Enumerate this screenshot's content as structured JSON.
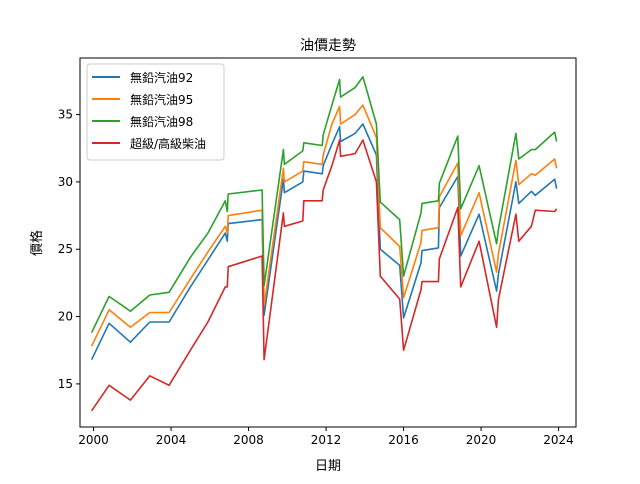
{
  "chart_data": {
    "type": "line",
    "title": "油價走勢",
    "xlabel": "日期",
    "ylabel": "價格",
    "xlim": [
      1999.3,
      2024.9
    ],
    "ylim": [
      11.8,
      39.2
    ],
    "xticks": [
      2000,
      2004,
      2008,
      2012,
      2016,
      2020,
      2024
    ],
    "yticks": [
      15,
      20,
      25,
      30,
      35
    ],
    "grid": false,
    "legend_position": "top-left",
    "series": [
      {
        "name": "無鉛汽油92",
        "color": "#1f77b4",
        "points": [
          [
            1999.9,
            16.8
          ],
          [
            2000.8,
            19.5
          ],
          [
            2001.9,
            18.1
          ],
          [
            2002.9,
            19.6
          ],
          [
            2003.9,
            19.6
          ],
          [
            2005.0,
            22.2
          ],
          [
            2005.9,
            24.2
          ],
          [
            2006.8,
            26.2
          ],
          [
            2006.9,
            25.6
          ],
          [
            2006.95,
            26.9
          ],
          [
            2008.7,
            27.2
          ],
          [
            2008.8,
            20.1
          ],
          [
            2009.8,
            30.2
          ],
          [
            2009.85,
            29.2
          ],
          [
            2010.8,
            30.0
          ],
          [
            2010.85,
            30.8
          ],
          [
            2011.8,
            30.6
          ],
          [
            2011.85,
            31.2
          ],
          [
            2012.3,
            32.8
          ],
          [
            2012.7,
            34.1
          ],
          [
            2012.75,
            33.0
          ],
          [
            2013.5,
            33.6
          ],
          [
            2013.9,
            34.3
          ],
          [
            2014.6,
            32.0
          ],
          [
            2014.8,
            25.0
          ],
          [
            2015.8,
            23.8
          ],
          [
            2016.0,
            19.9
          ],
          [
            2016.9,
            24.0
          ],
          [
            2016.95,
            24.9
          ],
          [
            2017.8,
            25.1
          ],
          [
            2017.85,
            28.1
          ],
          [
            2018.8,
            30.4
          ],
          [
            2018.95,
            24.5
          ],
          [
            2019.9,
            27.6
          ],
          [
            2020.8,
            21.9
          ],
          [
            2020.9,
            23.2
          ],
          [
            2021.8,
            30.0
          ],
          [
            2021.95,
            28.4
          ],
          [
            2022.6,
            29.3
          ],
          [
            2022.8,
            29.0
          ],
          [
            2023.8,
            30.2
          ],
          [
            2023.9,
            29.5
          ]
        ]
      },
      {
        "name": "無鉛汽油95",
        "color": "#ff7f0e",
        "points": [
          [
            1999.9,
            17.8
          ],
          [
            2000.8,
            20.5
          ],
          [
            2001.9,
            19.2
          ],
          [
            2002.9,
            20.3
          ],
          [
            2003.9,
            20.3
          ],
          [
            2005.0,
            22.8
          ],
          [
            2005.9,
            24.8
          ],
          [
            2006.8,
            26.7
          ],
          [
            2006.9,
            26.2
          ],
          [
            2006.95,
            27.5
          ],
          [
            2008.7,
            27.9
          ],
          [
            2008.8,
            20.8
          ],
          [
            2009.8,
            31.0
          ],
          [
            2009.85,
            30.0
          ],
          [
            2010.8,
            30.8
          ],
          [
            2010.85,
            31.5
          ],
          [
            2011.8,
            31.3
          ],
          [
            2011.85,
            32.0
          ],
          [
            2012.3,
            34.3
          ],
          [
            2012.7,
            35.6
          ],
          [
            2012.75,
            34.3
          ],
          [
            2013.5,
            35.0
          ],
          [
            2013.9,
            35.7
          ],
          [
            2014.6,
            33.3
          ],
          [
            2014.8,
            26.6
          ],
          [
            2015.8,
            25.2
          ],
          [
            2016.0,
            21.4
          ],
          [
            2016.9,
            25.5
          ],
          [
            2016.95,
            26.4
          ],
          [
            2017.8,
            26.6
          ],
          [
            2017.85,
            28.9
          ],
          [
            2018.8,
            31.4
          ],
          [
            2018.95,
            26.0
          ],
          [
            2019.9,
            29.2
          ],
          [
            2020.8,
            23.3
          ],
          [
            2020.9,
            24.7
          ],
          [
            2021.8,
            31.6
          ],
          [
            2021.95,
            29.8
          ],
          [
            2022.6,
            30.6
          ],
          [
            2022.8,
            30.5
          ],
          [
            2023.8,
            31.7
          ],
          [
            2023.9,
            31.0
          ]
        ]
      },
      {
        "name": "無鉛汽油98",
        "color": "#2ca02c",
        "points": [
          [
            1999.9,
            18.8
          ],
          [
            2000.8,
            21.5
          ],
          [
            2001.9,
            20.4
          ],
          [
            2002.9,
            21.6
          ],
          [
            2003.9,
            21.8
          ],
          [
            2005.0,
            24.4
          ],
          [
            2005.9,
            26.2
          ],
          [
            2006.8,
            28.6
          ],
          [
            2006.9,
            27.8
          ],
          [
            2006.95,
            29.1
          ],
          [
            2008.7,
            29.4
          ],
          [
            2008.8,
            22.3
          ],
          [
            2009.8,
            32.4
          ],
          [
            2009.85,
            31.3
          ],
          [
            2010.8,
            32.3
          ],
          [
            2010.85,
            32.9
          ],
          [
            2011.8,
            32.7
          ],
          [
            2011.85,
            33.5
          ],
          [
            2012.3,
            35.7
          ],
          [
            2012.7,
            37.6
          ],
          [
            2012.75,
            36.3
          ],
          [
            2013.5,
            37.0
          ],
          [
            2013.9,
            37.8
          ],
          [
            2014.6,
            34.3
          ],
          [
            2014.8,
            28.5
          ],
          [
            2015.8,
            27.2
          ],
          [
            2016.0,
            23.0
          ],
          [
            2016.9,
            27.7
          ],
          [
            2016.95,
            28.4
          ],
          [
            2017.8,
            28.6
          ],
          [
            2017.85,
            29.9
          ],
          [
            2018.8,
            33.4
          ],
          [
            2018.95,
            28.0
          ],
          [
            2019.9,
            31.2
          ],
          [
            2020.8,
            25.4
          ],
          [
            2020.9,
            26.5
          ],
          [
            2021.8,
            33.6
          ],
          [
            2021.95,
            31.7
          ],
          [
            2022.6,
            32.4
          ],
          [
            2022.8,
            32.4
          ],
          [
            2023.8,
            33.7
          ],
          [
            2023.9,
            33.0
          ]
        ]
      },
      {
        "name": "超級/高級柴油",
        "color": "#d62728",
        "points": [
          [
            1999.9,
            13.0
          ],
          [
            2000.8,
            14.9
          ],
          [
            2001.9,
            13.8
          ],
          [
            2002.9,
            15.6
          ],
          [
            2003.9,
            14.9
          ],
          [
            2005.0,
            17.5
          ],
          [
            2005.9,
            19.6
          ],
          [
            2006.8,
            22.2
          ],
          [
            2006.9,
            22.2
          ],
          [
            2006.95,
            23.7
          ],
          [
            2008.7,
            24.5
          ],
          [
            2008.8,
            16.8
          ],
          [
            2009.8,
            27.7
          ],
          [
            2009.85,
            26.7
          ],
          [
            2010.8,
            27.1
          ],
          [
            2010.85,
            28.6
          ],
          [
            2011.8,
            28.6
          ],
          [
            2011.85,
            29.4
          ],
          [
            2012.3,
            31.2
          ],
          [
            2012.7,
            33.1
          ],
          [
            2012.75,
            31.9
          ],
          [
            2013.5,
            32.1
          ],
          [
            2013.9,
            33.1
          ],
          [
            2014.6,
            30.0
          ],
          [
            2014.8,
            23.0
          ],
          [
            2015.8,
            21.3
          ],
          [
            2016.0,
            17.5
          ],
          [
            2016.9,
            22.0
          ],
          [
            2016.95,
            22.6
          ],
          [
            2017.8,
            22.6
          ],
          [
            2017.85,
            24.3
          ],
          [
            2018.8,
            28.1
          ],
          [
            2018.95,
            22.2
          ],
          [
            2019.9,
            25.6
          ],
          [
            2020.8,
            19.2
          ],
          [
            2020.9,
            21.3
          ],
          [
            2021.8,
            27.6
          ],
          [
            2021.95,
            25.6
          ],
          [
            2022.6,
            26.7
          ],
          [
            2022.8,
            27.9
          ],
          [
            2023.8,
            27.8
          ],
          [
            2023.9,
            28.0
          ]
        ]
      }
    ]
  }
}
